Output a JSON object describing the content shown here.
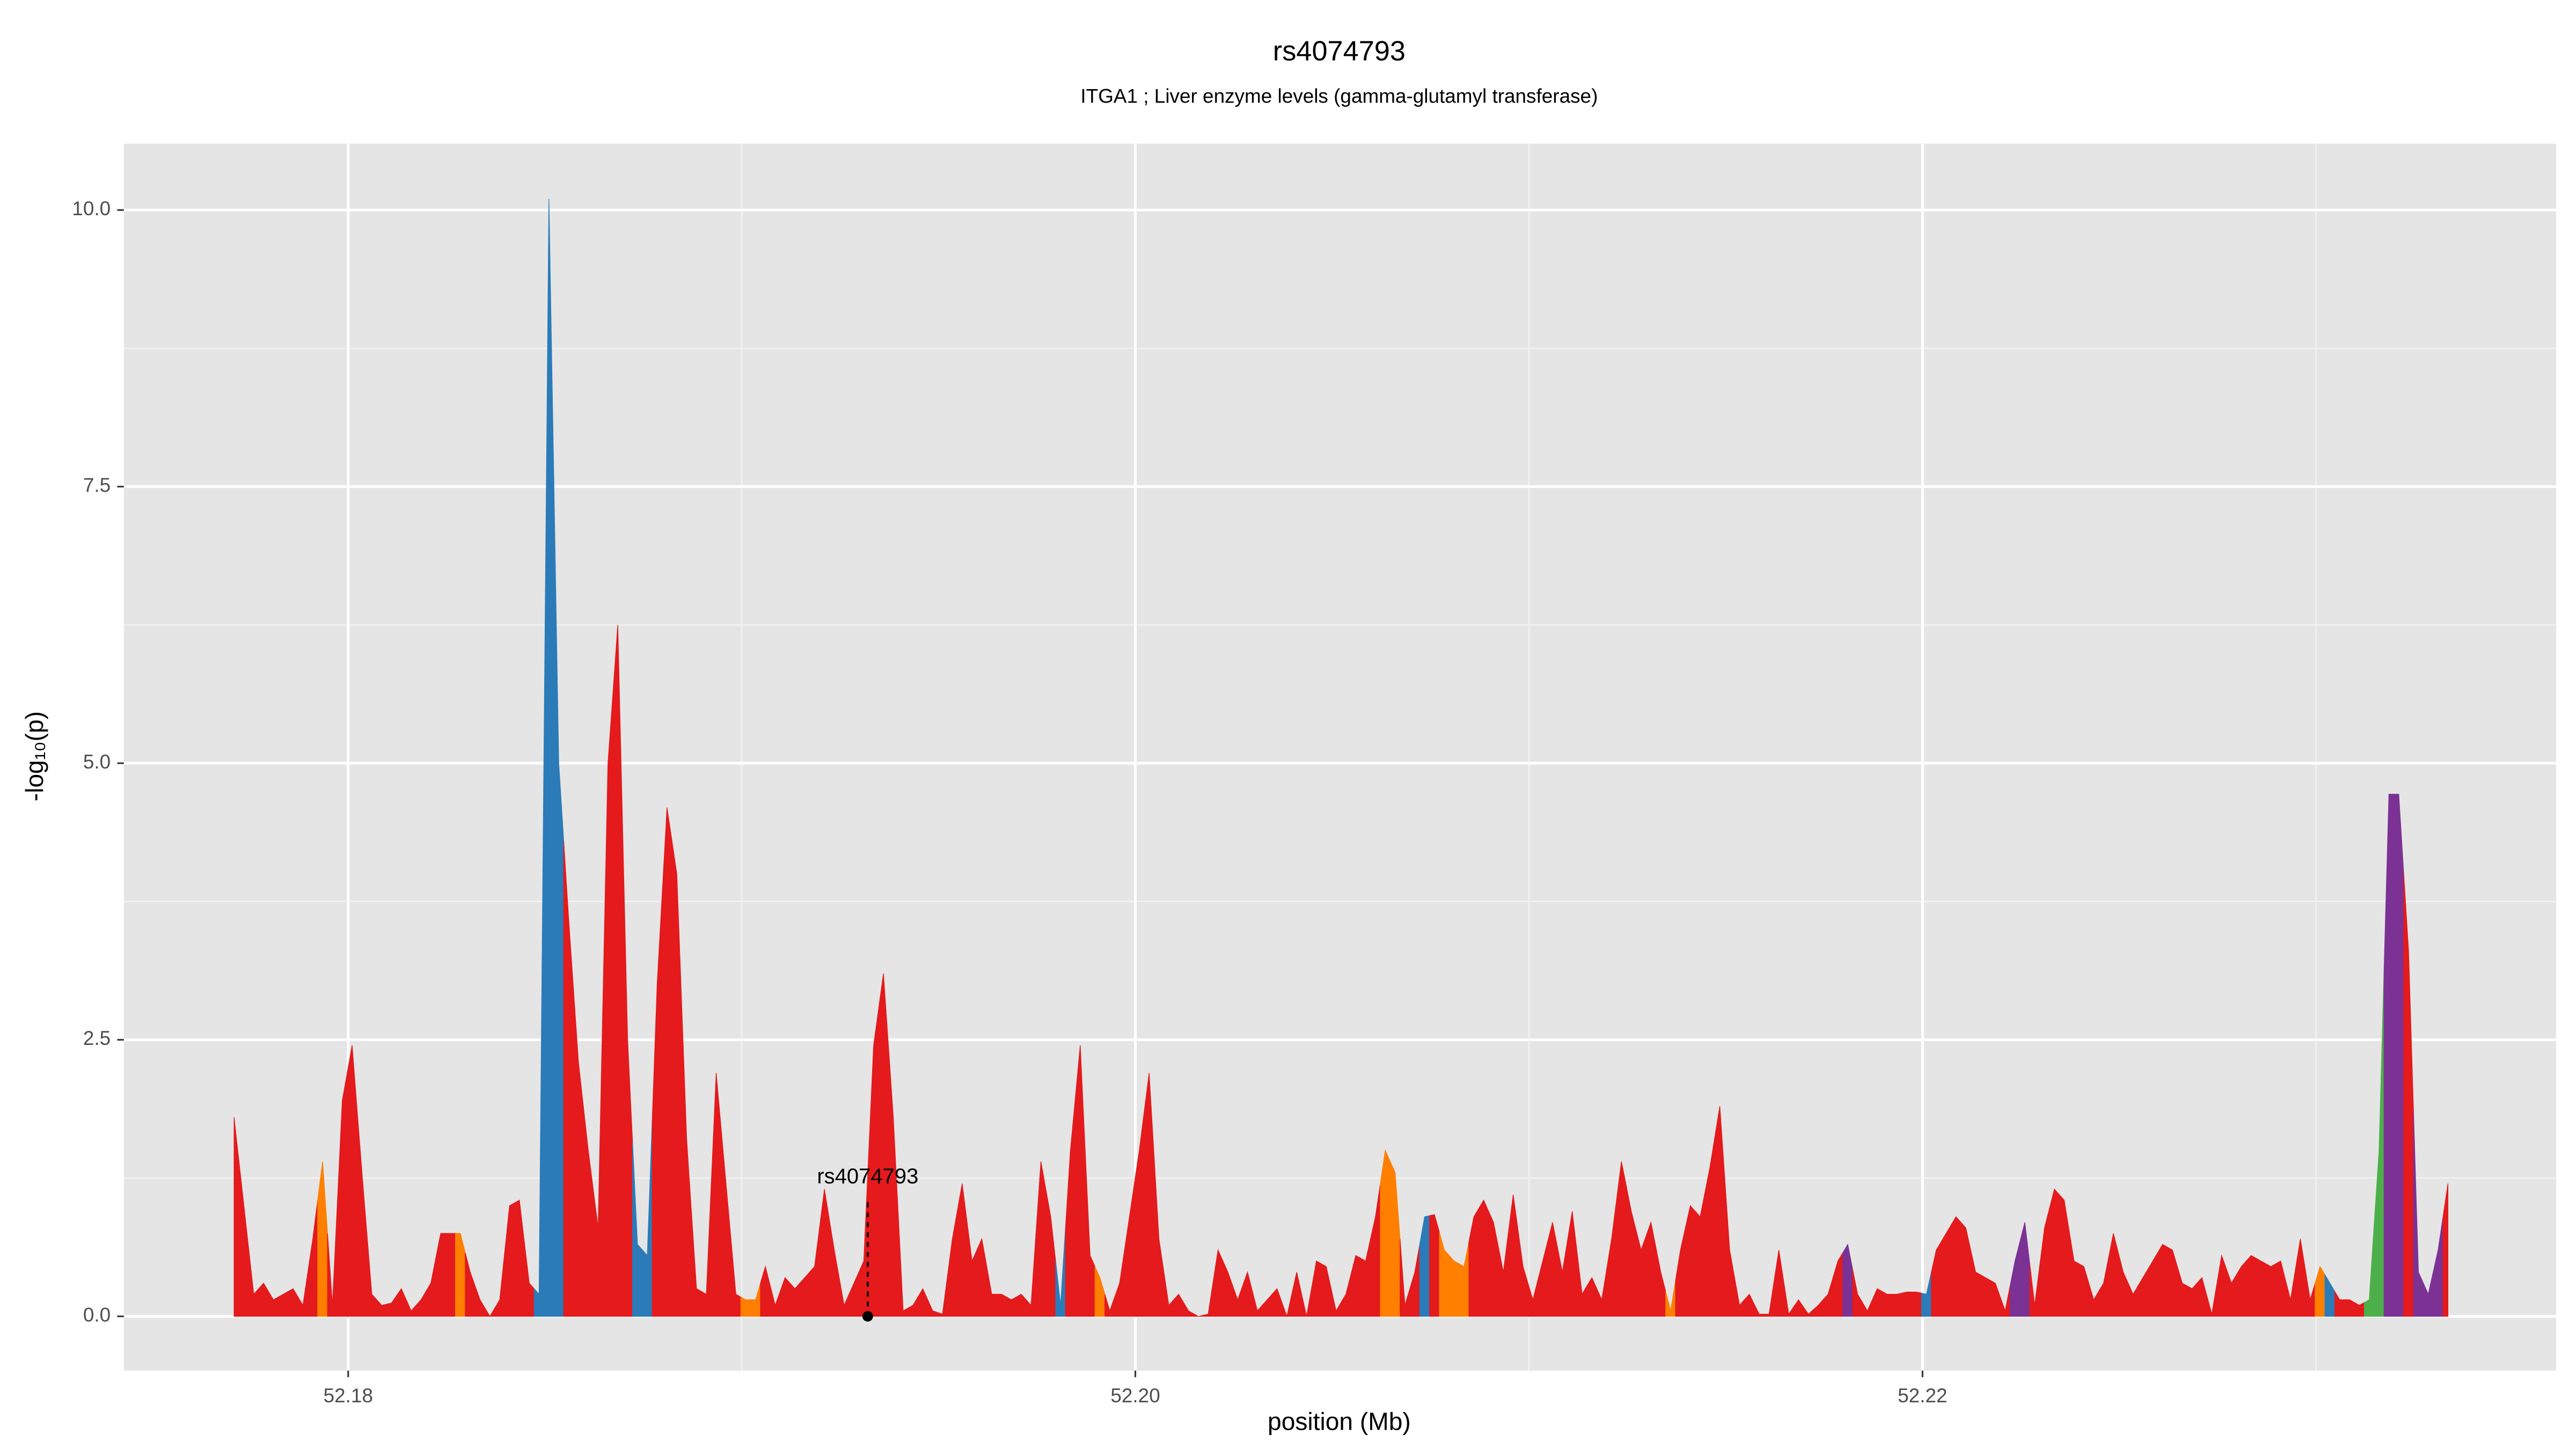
{
  "chart_data": {
    "type": "area",
    "title": "rs4074793",
    "subtitle": "ITGA1 ; Liver enzyme levels (gamma-glutamyl transferase)",
    "x_label": "position (Mb)",
    "y_label": "-log₁₀(p)",
    "x": [
      52.1771,
      52.17735,
      52.1776,
      52.17785,
      52.1781,
      52.17835,
      52.1786,
      52.17885,
      52.1791,
      52.17935,
      52.1796,
      52.17985,
      52.1801,
      52.18035,
      52.1806,
      52.18085,
      52.1811,
      52.18135,
      52.1816,
      52.18185,
      52.1821,
      52.18235,
      52.1826,
      52.18285,
      52.1831,
      52.18335,
      52.1836,
      52.18385,
      52.1841,
      52.18435,
      52.1846,
      52.18485,
      52.1851,
      52.18535,
      52.1856,
      52.18585,
      52.1861,
      52.18635,
      52.1866,
      52.18685,
      52.1871,
      52.18735,
      52.1876,
      52.18785,
      52.1881,
      52.18835,
      52.1886,
      52.18885,
      52.1891,
      52.18935,
      52.1896,
      52.18985,
      52.1901,
      52.19035,
      52.1906,
      52.19085,
      52.1911,
      52.19135,
      52.1916,
      52.19185,
      52.1921,
      52.19235,
      52.1926,
      52.19285,
      52.1931,
      52.19335,
      52.1936,
      52.19385,
      52.1941,
      52.19435,
      52.1946,
      52.19485,
      52.1951,
      52.19535,
      52.1956,
      52.19585,
      52.1961,
      52.19635,
      52.1966,
      52.19685,
      52.1971,
      52.19735,
      52.1976,
      52.19785,
      52.1981,
      52.19835,
      52.1986,
      52.19885,
      52.1991,
      52.19935,
      52.1996,
      52.19985,
      52.2001,
      52.20035,
      52.2006,
      52.20085,
      52.2011,
      52.20135,
      52.2016,
      52.20185,
      52.2021,
      52.20235,
      52.2026,
      52.20285,
      52.2031,
      52.20335,
      52.2036,
      52.20385,
      52.2041,
      52.20435,
      52.2046,
      52.20485,
      52.2051,
      52.20535,
      52.2056,
      52.20585,
      52.2061,
      52.20635,
      52.2066,
      52.20685,
      52.2071,
      52.20735,
      52.2076,
      52.20785,
      52.2081,
      52.20835,
      52.2086,
      52.20885,
      52.2091,
      52.20935,
      52.2096,
      52.20985,
      52.2101,
      52.21035,
      52.2106,
      52.21085,
      52.2111,
      52.21135,
      52.2116,
      52.21185,
      52.2121,
      52.21235,
      52.2126,
      52.21285,
      52.2131,
      52.21335,
      52.2136,
      52.21385,
      52.2141,
      52.21435,
      52.2146,
      52.21485,
      52.2151,
      52.21535,
      52.2156,
      52.21585,
      52.2161,
      52.21635,
      52.2166,
      52.21685,
      52.2171,
      52.21735,
      52.2176,
      52.21785,
      52.2181,
      52.21835,
      52.2186,
      52.21885,
      52.2191,
      52.21935,
      52.2196,
      52.21985,
      52.2201,
      52.22035,
      52.2206,
      52.22085,
      52.2211,
      52.22135,
      52.2216,
      52.22185,
      52.2221,
      52.22235,
      52.2226,
      52.22285,
      52.2231,
      52.22335,
      52.2236,
      52.22385,
      52.2241,
      52.22435,
      52.2246,
      52.22485,
      52.2251,
      52.22535,
      52.2256,
      52.22585,
      52.2261,
      52.22635,
      52.2266,
      52.22685,
      52.2271,
      52.22735,
      52.2276,
      52.22785,
      52.2281,
      52.22835,
      52.2286,
      52.22885,
      52.2291,
      52.22935,
      52.2296,
      52.22985,
      52.2301,
      52.23035,
      52.2306,
      52.23085,
      52.2311,
      52.23135,
      52.2316,
      52.23185,
      52.2321,
      52.23235,
      52.2326,
      52.23285,
      52.2331,
      52.23335
    ],
    "values": [
      1.8,
      1.0,
      0.2,
      0.3,
      0.15,
      0.2,
      0.25,
      0.1,
      0.7,
      1.4,
      0.1,
      1.95,
      2.45,
      1.3,
      0.2,
      0.1,
      0.12,
      0.25,
      0.05,
      0.15,
      0.3,
      0.75,
      0.75,
      0.75,
      0.4,
      0.15,
      0,
      0.15,
      1.0,
      1.05,
      0.3,
      0.2,
      10.1,
      5.0,
      3.6,
      2.3,
      1.5,
      0.8,
      5.0,
      6.25,
      2.5,
      0.65,
      0.55,
      3.0,
      4.6,
      4.0,
      1.6,
      0.25,
      0.2,
      2.2,
      1.2,
      0.2,
      0.15,
      0.15,
      0.45,
      0.1,
      0.35,
      0.25,
      0.35,
      0.45,
      1.15,
      0.6,
      0.1,
      0.3,
      0.5,
      2.45,
      3.1,
      1.8,
      0.05,
      0.1,
      0.25,
      0.05,
      0.02,
      0.7,
      1.2,
      0.5,
      0.7,
      0.2,
      0.2,
      0.15,
      0.2,
      0.1,
      1.4,
      0.9,
      0.1,
      1.5,
      2.45,
      0.55,
      0.35,
      0.05,
      0.3,
      0.9,
      1.5,
      2.2,
      0.7,
      0.1,
      0.2,
      0.05,
      0,
      0.02,
      0.6,
      0.4,
      0.15,
      0.4,
      0.05,
      0.15,
      0.25,
      0,
      0.4,
      0,
      0.5,
      0.45,
      0.05,
      0.2,
      0.55,
      0.5,
      0.9,
      1.5,
      1.3,
      0.1,
      0.4,
      0.9,
      0.92,
      0.6,
      0.5,
      0.45,
      0.9,
      1.05,
      0.85,
      0.4,
      1.1,
      0.45,
      0.15,
      0.5,
      0.85,
      0.4,
      0.95,
      0.2,
      0.35,
      0.15,
      0.7,
      1.4,
      0.95,
      0.6,
      0.85,
      0.4,
      0.05,
      0.6,
      1.0,
      0.9,
      1.35,
      1.9,
      0.6,
      0.1,
      0.2,
      0.02,
      0.02,
      0.6,
      0.02,
      0.15,
      0.02,
      0.1,
      0.2,
      0.5,
      0.65,
      0.2,
      0.05,
      0.25,
      0.2,
      0.2,
      0.22,
      0.22,
      0.2,
      0.6,
      0.75,
      0.9,
      0.8,
      0.4,
      0.35,
      0.3,
      0.05,
      0.5,
      0.85,
      0.1,
      0.8,
      1.15,
      1.05,
      0.5,
      0.45,
      0.15,
      0.3,
      0.75,
      0.4,
      0.2,
      0.35,
      0.5,
      0.65,
      0.6,
      0.3,
      0.25,
      0.35,
      0.02,
      0.55,
      0.3,
      0.45,
      0.55,
      0.5,
      0.45,
      0.5,
      0.15,
      0.7,
      0.15,
      0.45,
      0.3,
      0.15,
      0.15,
      0.1,
      0.15,
      1.5,
      4.72,
      4.72,
      3.3,
      0.4,
      0.2,
      0.6,
      1.2
    ],
    "colors": [
      "#e41a1c",
      "#e41a1c",
      "#e41a1c",
      "#e41a1c",
      "#e41a1c",
      "#e41a1c",
      "#e41a1c",
      "#e41a1c",
      "#e41a1c",
      "#ff7f00",
      "#e41a1c",
      "#e41a1c",
      "#e41a1c",
      "#e41a1c",
      "#e41a1c",
      "#e41a1c",
      "#e41a1c",
      "#e41a1c",
      "#e41a1c",
      "#e41a1c",
      "#e41a1c",
      "#e41a1c",
      "#e41a1c",
      "#ff7f00",
      "#e41a1c",
      "#e41a1c",
      "#e41a1c",
      "#e41a1c",
      "#e41a1c",
      "#e41a1c",
      "#e41a1c",
      "#2b7bb9",
      "#2b7bb9",
      "#2b7bb9",
      "#e41a1c",
      "#e41a1c",
      "#e41a1c",
      "#e41a1c",
      "#e41a1c",
      "#e41a1c",
      "#e41a1c",
      "#2b7bb9",
      "#2b7bb9",
      "#e41a1c",
      "#e41a1c",
      "#e41a1c",
      "#e41a1c",
      "#e41a1c",
      "#e41a1c",
      "#e41a1c",
      "#e41a1c",
      "#e41a1c",
      "#ff7f00",
      "#ff7f00",
      "#e41a1c",
      "#e41a1c",
      "#e41a1c",
      "#e41a1c",
      "#e41a1c",
      "#e41a1c",
      "#e41a1c",
      "#e41a1c",
      "#e41a1c",
      "#e41a1c",
      "#e41a1c",
      "#e41a1c",
      "#e41a1c",
      "#e41a1c",
      "#e41a1c",
      "#e41a1c",
      "#e41a1c",
      "#e41a1c",
      "#e41a1c",
      "#e41a1c",
      "#e41a1c",
      "#e41a1c",
      "#e41a1c",
      "#e41a1c",
      "#e41a1c",
      "#e41a1c",
      "#e41a1c",
      "#e41a1c",
      "#e41a1c",
      "#e41a1c",
      "#2b7bb9",
      "#e41a1c",
      "#e41a1c",
      "#e41a1c",
      "#ff7f00",
      "#e41a1c",
      "#e41a1c",
      "#e41a1c",
      "#e41a1c",
      "#e41a1c",
      "#e41a1c",
      "#e41a1c",
      "#e41a1c",
      "#e41a1c",
      "#e41a1c",
      "#e41a1c",
      "#e41a1c",
      "#e41a1c",
      "#e41a1c",
      "#e41a1c",
      "#e41a1c",
      "#e41a1c",
      "#e41a1c",
      "#e41a1c",
      "#e41a1c",
      "#e41a1c",
      "#e41a1c",
      "#e41a1c",
      "#e41a1c",
      "#e41a1c",
      "#e41a1c",
      "#e41a1c",
      "#e41a1c",
      "#ff7f00",
      "#ff7f00",
      "#e41a1c",
      "#e41a1c",
      "#2b7bb9",
      "#e41a1c",
      "#ff7f00",
      "#ff7f00",
      "#ff7f00",
      "#e41a1c",
      "#e41a1c",
      "#e41a1c",
      "#e41a1c",
      "#e41a1c",
      "#e41a1c",
      "#e41a1c",
      "#e41a1c",
      "#e41a1c",
      "#e41a1c",
      "#e41a1c",
      "#e41a1c",
      "#e41a1c",
      "#e41a1c",
      "#e41a1c",
      "#e41a1c",
      "#e41a1c",
      "#e41a1c",
      "#e41a1c",
      "#e41a1c",
      "#ff7f00",
      "#e41a1c",
      "#e41a1c",
      "#e41a1c",
      "#e41a1c",
      "#e41a1c",
      "#e41a1c",
      "#e41a1c",
      "#e41a1c",
      "#e41a1c",
      "#e41a1c",
      "#e41a1c",
      "#e41a1c",
      "#e41a1c",
      "#e41a1c",
      "#e41a1c",
      "#e41a1c",
      "#e41a1c",
      "#7b3294",
      "#e41a1c",
      "#e41a1c",
      "#e41a1c",
      "#e41a1c",
      "#e41a1c",
      "#e41a1c",
      "#e41a1c",
      "#2b7bb9",
      "#e41a1c",
      "#e41a1c",
      "#e41a1c",
      "#e41a1c",
      "#e41a1c",
      "#e41a1c",
      "#e41a1c",
      "#e41a1c",
      "#7b3294",
      "#7b3294",
      "#e41a1c",
      "#e41a1c",
      "#e41a1c",
      "#e41a1c",
      "#e41a1c",
      "#e41a1c",
      "#e41a1c",
      "#e41a1c",
      "#e41a1c",
      "#e41a1c",
      "#e41a1c",
      "#e41a1c",
      "#e41a1c",
      "#e41a1c",
      "#e41a1c",
      "#e41a1c",
      "#e41a1c",
      "#e41a1c",
      "#e41a1c",
      "#e41a1c",
      "#e41a1c",
      "#e41a1c",
      "#e41a1c",
      "#e41a1c",
      "#e41a1c",
      "#e41a1c",
      "#e41a1c",
      "#e41a1c",
      "#e41a1c",
      "#ff7f00",
      "#2b7bb9",
      "#e41a1c",
      "#e41a1c",
      "#e41a1c",
      "#4daf4a",
      "#4daf4a",
      "#7b3294",
      "#7b3294",
      "#e41a1c",
      "#7b3294",
      "#7b3294",
      "#7b3294",
      "#e41a1c"
    ],
    "annotation": {
      "label": "rs4074793",
      "x": 52.1932,
      "y": 0
    },
    "xlim": [
      52.1743,
      52.2361
    ],
    "ylim": [
      -0.49,
      10.6
    ],
    "xticks": [
      52.18,
      {
        "value": 52.2,
        "label": "52.20"
      },
      52.22
    ],
    "yticks": [
      {
        "value": 0,
        "label": "0.0"
      },
      2.5,
      {
        "value": 5,
        "label": "5.0"
      },
      7.5,
      {
        "value": 10,
        "label": "10.0"
      }
    ],
    "x_minor_ticks": [
      52.19,
      52.21,
      52.23
    ],
    "y_minor_ticks": [
      1.25,
      3.75,
      6.25,
      8.75
    ],
    "grid": true
  }
}
